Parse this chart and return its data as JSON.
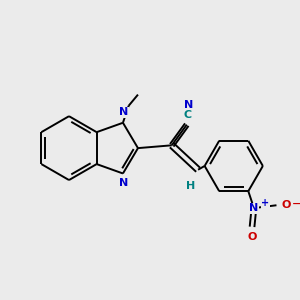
{
  "background_color": "#ebebeb",
  "bond_color": "#000000",
  "N_color": "#0000cc",
  "O_color": "#cc0000",
  "H_color": "#008080",
  "C_color": "#008080",
  "figsize": [
    3.0,
    3.0
  ],
  "dpi": 100,
  "xlim": [
    0,
    300
  ],
  "ylim": [
    0,
    300
  ]
}
